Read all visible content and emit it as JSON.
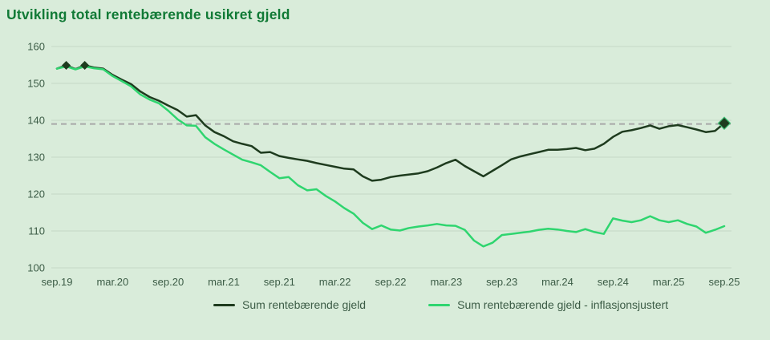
{
  "chart_data": {
    "type": "line",
    "title": "Utvikling total rentebærende usikret gjeld",
    "x_frequency": "monthly",
    "x_start": "sep.19",
    "x_end": "sep.25",
    "x_tick_labels": [
      "sep.19",
      "mar.20",
      "sep.20",
      "mar.21",
      "sep.21",
      "mar.22",
      "sep.22",
      "mar.23",
      "sep.23",
      "mar.24",
      "sep.24",
      "mar.25",
      "sep.25"
    ],
    "x_tick_every_n_points": 6,
    "y_ticks": [
      160,
      150,
      140,
      130,
      120,
      110,
      100
    ],
    "ylim": [
      100,
      160
    ],
    "grid": "horizontal",
    "legend_position": "bottom",
    "reference_line": {
      "value": 139,
      "style": "dashed"
    },
    "series": [
      {
        "name": "Sum rentebærende gjeld",
        "color": "#1e3b1e",
        "marker": "diamond",
        "marker_small_indices": [
          1,
          3
        ],
        "marker_large_indices": [
          72
        ],
        "values": [
          154.0,
          154.9,
          153.9,
          154.9,
          154.3,
          154.0,
          152.3,
          151.0,
          149.8,
          147.8,
          146.3,
          145.3,
          144.0,
          142.8,
          141.0,
          141.4,
          138.6,
          136.8,
          135.7,
          134.3,
          133.6,
          133.0,
          131.2,
          131.4,
          130.3,
          129.8,
          129.4,
          129.0,
          128.4,
          127.9,
          127.4,
          126.9,
          126.7,
          124.8,
          123.6,
          123.9,
          124.6,
          125.0,
          125.3,
          125.6,
          126.2,
          127.2,
          128.4,
          129.3,
          127.6,
          126.2,
          124.8,
          126.3,
          127.8,
          129.4,
          130.2,
          130.8,
          131.4,
          132.0,
          132.0,
          132.2,
          132.5,
          131.9,
          132.3,
          133.6,
          135.5,
          136.9,
          137.3,
          137.9,
          138.6,
          137.7,
          138.4,
          138.7,
          138.1,
          137.5,
          136.8,
          137.1,
          139.2
        ]
      },
      {
        "name": "Sum rentebærende gjeld - inflasjonsjustert",
        "color": "#2fd56f",
        "marker": "none",
        "values": [
          154.0,
          154.6,
          153.8,
          154.6,
          154.1,
          153.8,
          152.0,
          150.6,
          149.2,
          147.0,
          145.6,
          144.6,
          142.6,
          140.3,
          138.6,
          138.5,
          135.4,
          133.6,
          132.1,
          130.7,
          129.3,
          128.6,
          127.8,
          126.0,
          124.3,
          124.6,
          122.4,
          121.0,
          121.3,
          119.5,
          118.0,
          116.2,
          114.7,
          112.2,
          110.5,
          111.5,
          110.4,
          110.1,
          110.8,
          111.2,
          111.5,
          111.9,
          111.5,
          111.4,
          110.3,
          107.4,
          105.8,
          106.8,
          108.9,
          109.2,
          109.5,
          109.8,
          110.3,
          110.6,
          110.4,
          110.0,
          109.7,
          110.5,
          109.7,
          109.2,
          113.4,
          112.8,
          112.4,
          112.9,
          114.0,
          112.9,
          112.4,
          112.9,
          111.9,
          111.2,
          109.5,
          110.3,
          111.3
        ]
      }
    ]
  },
  "colors": {
    "background": "#d9ecda",
    "title_text": "#117a36",
    "axis_text": "#3c5c46",
    "grid": "#c5d7c7",
    "reference": "#a8a8a8",
    "marker_edge": "#3dbb72"
  }
}
